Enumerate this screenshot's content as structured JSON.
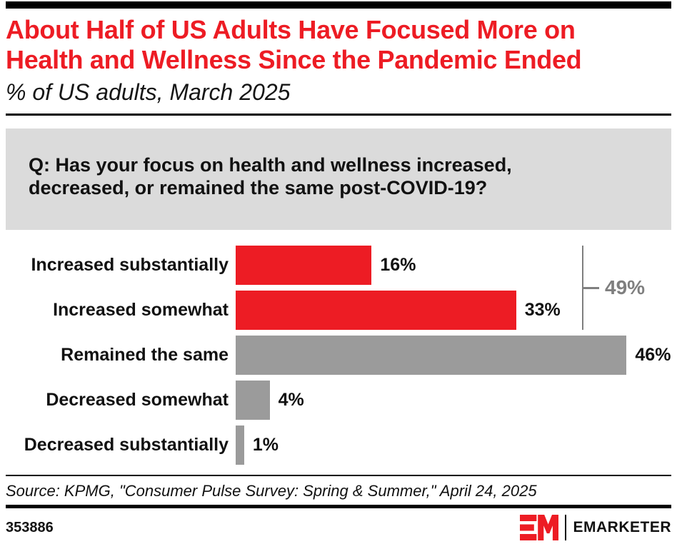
{
  "header": {
    "title": "About Half of US Adults Have Focused More on\nHealth and Wellness Since the Pandemic Ended",
    "subtitle": "% of US adults, March 2025"
  },
  "question": {
    "text": "Q: Has your focus on health and wellness increased,\ndecreased, or remained the same post-COVID-19?"
  },
  "chart_data": {
    "type": "bar",
    "orientation": "horizontal",
    "title": "About Half of US Adults Have Focused More on Health and Wellness Since the Pandemic Ended",
    "subtitle": "% of US adults, March 2025",
    "xlabel": "",
    "ylabel": "",
    "unit": "%",
    "grid": false,
    "legend": "none",
    "categories": [
      "Increased substantially",
      "Increased somewhat",
      "Remained the same",
      "Decreased somewhat",
      "Decreased substantially"
    ],
    "values": [
      16,
      33,
      46,
      4,
      1
    ],
    "value_labels": [
      "16%",
      "33%",
      "46%",
      "4%",
      "1%"
    ],
    "bar_colors": [
      "#ED1C24",
      "#ED1C24",
      "#9B9B9B",
      "#9B9B9B",
      "#9B9B9B"
    ],
    "annotation": {
      "label": "49%",
      "rows": [
        0,
        1
      ],
      "color": "#7F7F7F"
    }
  },
  "footer": {
    "source": "Source: KPMG, \"Consumer Pulse Survey: Spring & Summer,\" April 24, 2025",
    "chart_id": "353886",
    "brand": "EMARKETER"
  },
  "colors": {
    "accent_red": "#ED1C24",
    "bar_gray": "#9B9B9B",
    "annotation_gray": "#7F7F7F",
    "question_box_bg": "#DBDBDB",
    "text_black": "#000000"
  }
}
